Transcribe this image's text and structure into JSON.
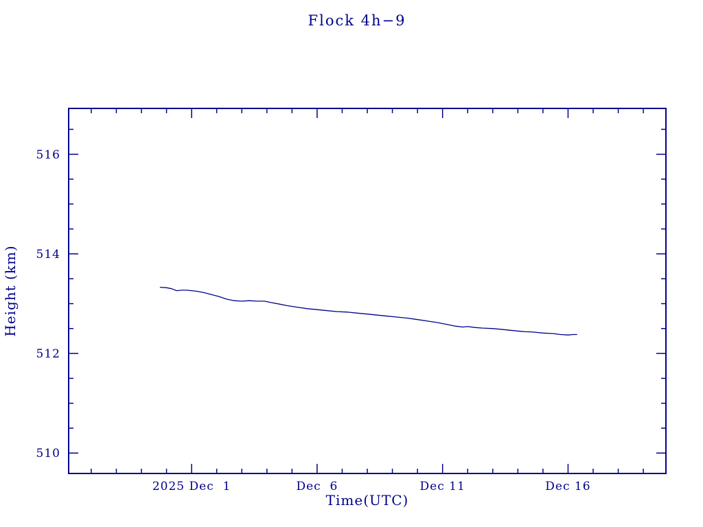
{
  "page": {
    "background_color": "#ffffff"
  },
  "chart_data": {
    "type": "line",
    "title": "Flock 4h−9",
    "xlabel": "Time(UTC)",
    "ylabel": "Height (km)",
    "accent_color": "#00008b",
    "grid": false,
    "legend": "none",
    "x_axis": {
      "unit": "days relative to 2025 Dec 1 (UTC)",
      "range": [
        -4.9,
        18.9
      ],
      "minor_tick_step": 1,
      "major_ticks": [
        {
          "value": 0,
          "label": "2025 Dec  1"
        },
        {
          "value": 5,
          "label": "Dec  6"
        },
        {
          "value": 10,
          "label": "Dec 11"
        },
        {
          "value": 15,
          "label": "Dec 16"
        }
      ]
    },
    "y_axis": {
      "unit": "km",
      "range": [
        509.59,
        516.92
      ],
      "minor_tick_step": 0.5,
      "major_ticks": [
        {
          "value": 510,
          "label": "510"
        },
        {
          "value": 512,
          "label": "512"
        },
        {
          "value": 514,
          "label": "514"
        },
        {
          "value": 516,
          "label": "516"
        }
      ]
    },
    "series": [
      {
        "name": "height-km",
        "color": "#00008b",
        "points": [
          [
            -1.25,
            513.33
          ],
          [
            -1.0,
            513.32
          ],
          [
            -0.8,
            513.3
          ],
          [
            -0.6,
            513.26
          ],
          [
            -0.4,
            513.27
          ],
          [
            -0.2,
            513.27
          ],
          [
            0.0,
            513.26
          ],
          [
            0.2,
            513.25
          ],
          [
            0.5,
            513.22
          ],
          [
            0.8,
            513.18
          ],
          [
            1.1,
            513.14
          ],
          [
            1.4,
            513.09
          ],
          [
            1.7,
            513.06
          ],
          [
            2.0,
            513.05
          ],
          [
            2.3,
            513.06
          ],
          [
            2.6,
            513.05
          ],
          [
            2.9,
            513.05
          ],
          [
            3.2,
            513.02
          ],
          [
            3.5,
            512.99
          ],
          [
            3.8,
            512.96
          ],
          [
            4.2,
            512.93
          ],
          [
            4.6,
            512.9
          ],
          [
            5.0,
            512.88
          ],
          [
            5.4,
            512.86
          ],
          [
            5.8,
            512.84
          ],
          [
            6.2,
            512.83
          ],
          [
            6.6,
            512.81
          ],
          [
            7.0,
            512.79
          ],
          [
            7.4,
            512.77
          ],
          [
            7.8,
            512.75
          ],
          [
            8.2,
            512.73
          ],
          [
            8.6,
            512.71
          ],
          [
            9.0,
            512.68
          ],
          [
            9.4,
            512.65
          ],
          [
            9.8,
            512.62
          ],
          [
            10.2,
            512.58
          ],
          [
            10.5,
            512.55
          ],
          [
            10.8,
            512.53
          ],
          [
            11.0,
            512.54
          ],
          [
            11.3,
            512.52
          ],
          [
            11.6,
            512.51
          ],
          [
            12.0,
            512.5
          ],
          [
            12.4,
            512.48
          ],
          [
            12.8,
            512.46
          ],
          [
            13.2,
            512.44
          ],
          [
            13.6,
            512.43
          ],
          [
            14.0,
            512.41
          ],
          [
            14.4,
            512.4
          ],
          [
            14.7,
            512.38
          ],
          [
            15.0,
            512.37
          ],
          [
            15.2,
            512.38
          ],
          [
            15.35,
            512.38
          ]
        ]
      }
    ]
  }
}
